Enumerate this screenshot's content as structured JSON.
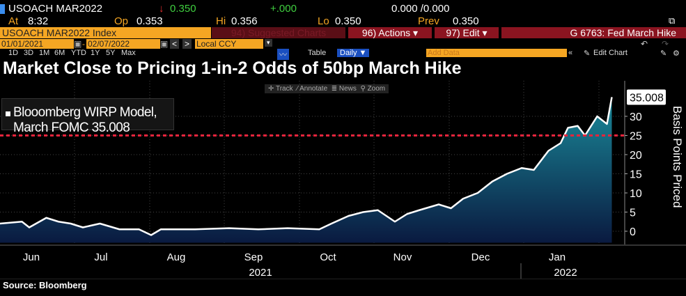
{
  "ticker": {
    "symbol": "USOACH MAR2022",
    "last": "0.350",
    "change": "+.000",
    "bidask": "0.000 /0.000",
    "at_label": "At",
    "time": "8:32",
    "op_label": "Op",
    "op": "0.353",
    "hi_label": "Hi",
    "hi": "0.356",
    "lo_label": "Lo",
    "lo": "0.350",
    "prev_label": "Prev",
    "prev": "0.350"
  },
  "toolbar": {
    "security": "USOACH MAR2022 Index",
    "suggested": "94) Suggested Charts",
    "actions": "96) Actions ▾",
    "edit": "97) Edit ▾",
    "chart_name": "G 6763: Fed March Hike",
    "start_date": "01/01/2021",
    "end_date": "02/07/2022",
    "currency": "Local CCY",
    "ranges": [
      "1D",
      "3D",
      "1M",
      "6M",
      "YTD",
      "1Y",
      "5Y",
      "Max"
    ],
    "frequency": "Daily ▼",
    "table": "Table",
    "add_data_placeholder": "Add Data",
    "edit_chart": "Edit Chart"
  },
  "title": "Market Close to Pricing 1-in-2 Odds of 50bp March Hike",
  "chart_tools": {
    "track": "Track",
    "annotate": "Annotate",
    "news": "News",
    "zoom": "Zoom"
  },
  "source": "Source: Bloomberg",
  "colors": {
    "line": "#ffffff",
    "fill_top": "#1a8a9a",
    "fill_bottom": "#0a1a40",
    "threshold": "#e8243c",
    "accent": "#f5a623"
  },
  "chart_data": {
    "type": "area",
    "title": "Market Close to Pricing 1-in-2 Odds of 50bp March Hike",
    "legend": "Blooomberg WIRP Model, March FOMC 35.008",
    "last_value_label": "35.008",
    "ylabel": "Basis Points Priced",
    "ylim": [
      -3,
      38
    ],
    "yticks": [
      "0",
      "5",
      "10",
      "15",
      "20",
      "25",
      "30"
    ],
    "xticks": [
      "Jun",
      "Jul",
      "Aug",
      "Sep",
      "Oct",
      "Nov",
      "Dec",
      "Jan"
    ],
    "xyears": [
      "2021",
      "2022"
    ],
    "threshold": 25,
    "series": [
      {
        "name": "Blooomberg WIRP Model, March FOMC",
        "points": [
          [
            "2021-06-01",
            2.0
          ],
          [
            "2021-06-10",
            2.5
          ],
          [
            "2021-06-13",
            1.0
          ],
          [
            "2021-06-20",
            3.5
          ],
          [
            "2021-06-25",
            2.5
          ],
          [
            "2021-06-30",
            2.0
          ],
          [
            "2021-07-05",
            1.0
          ],
          [
            "2021-07-12",
            2.0
          ],
          [
            "2021-07-20",
            0.5
          ],
          [
            "2021-07-28",
            0.5
          ],
          [
            "2021-08-02",
            -1.0
          ],
          [
            "2021-08-06",
            0.5
          ],
          [
            "2021-08-20",
            0.5
          ],
          [
            "2021-09-03",
            0.8
          ],
          [
            "2021-09-15",
            0.5
          ],
          [
            "2021-09-27",
            0.8
          ],
          [
            "2021-10-10",
            0.5
          ],
          [
            "2021-10-15",
            2.0
          ],
          [
            "2021-10-22",
            4.0
          ],
          [
            "2021-10-28",
            5.0
          ],
          [
            "2021-11-03",
            5.5
          ],
          [
            "2021-11-10",
            2.5
          ],
          [
            "2021-11-15",
            4.5
          ],
          [
            "2021-11-20",
            5.5
          ],
          [
            "2021-11-28",
            7.0
          ],
          [
            "2021-12-03",
            6.0
          ],
          [
            "2021-12-08",
            8.5
          ],
          [
            "2021-12-14",
            10.0
          ],
          [
            "2021-12-20",
            13.0
          ],
          [
            "2021-12-26",
            15.0
          ],
          [
            "2022-01-01",
            16.5
          ],
          [
            "2022-01-06",
            16.0
          ],
          [
            "2022-01-12",
            21.0
          ],
          [
            "2022-01-17",
            23.0
          ],
          [
            "2022-01-20",
            27.0
          ],
          [
            "2022-01-24",
            27.5
          ],
          [
            "2022-01-27",
            25.0
          ],
          [
            "2022-02-01",
            30.0
          ],
          [
            "2022-02-03",
            29.0
          ],
          [
            "2022-02-05",
            28.0
          ],
          [
            "2022-02-07",
            35.008
          ]
        ]
      }
    ]
  }
}
